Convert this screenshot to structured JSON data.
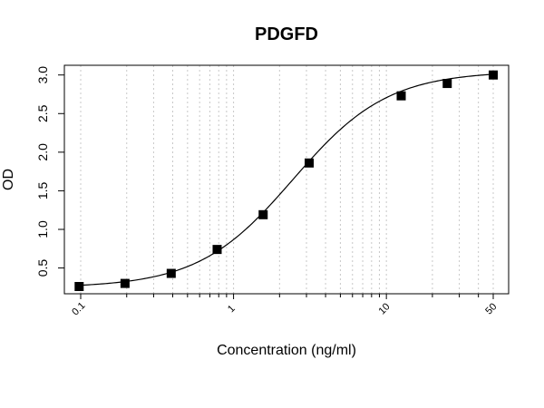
{
  "chart_data": {
    "type": "scatter",
    "title": "PDGFD",
    "xlabel": "Concentration (ng/ml)",
    "ylabel": "OD",
    "x_scale": "log",
    "xlim": [
      0.1,
      50
    ],
    "ylim": [
      0.26,
      3.02
    ],
    "x_tick_labels": [
      "0.1",
      "1",
      "10",
      "50"
    ],
    "y_tick_labels": [
      "0.5",
      "1.0",
      "1.5",
      "2.0",
      "2.5",
      "3.0"
    ],
    "grid": "vertical dotted",
    "series": [
      {
        "x": [
          0.0977,
          0.195,
          0.391,
          0.781,
          1.5625,
          3.125,
          12.5,
          25,
          50
        ],
        "y": [
          0.26,
          0.3,
          0.43,
          0.74,
          1.19,
          1.86,
          2.73,
          2.89,
          3.0
        ]
      }
    ],
    "fit_curve": {
      "model": "4PL",
      "bottom": 0.245,
      "top": 3.05,
      "ec50": 2.45,
      "hill": 1.4
    }
  }
}
